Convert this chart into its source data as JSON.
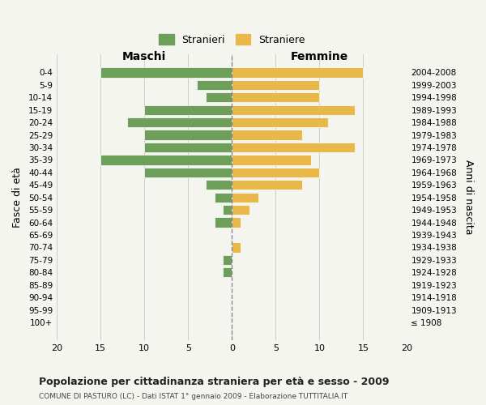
{
  "age_groups": [
    "100+",
    "95-99",
    "90-94",
    "85-89",
    "80-84",
    "75-79",
    "70-74",
    "65-69",
    "60-64",
    "55-59",
    "50-54",
    "45-49",
    "40-44",
    "35-39",
    "30-34",
    "25-29",
    "20-24",
    "15-19",
    "10-14",
    "5-9",
    "0-4"
  ],
  "birth_years": [
    "≤ 1908",
    "1909-1913",
    "1914-1918",
    "1919-1923",
    "1924-1928",
    "1929-1933",
    "1934-1938",
    "1939-1943",
    "1944-1948",
    "1949-1953",
    "1954-1958",
    "1959-1963",
    "1964-1968",
    "1969-1973",
    "1974-1978",
    "1979-1983",
    "1984-1988",
    "1989-1993",
    "1994-1998",
    "1999-2003",
    "2004-2008"
  ],
  "maschi": [
    0,
    0,
    0,
    0,
    1,
    1,
    0,
    0,
    2,
    1,
    2,
    3,
    10,
    15,
    10,
    10,
    12,
    10,
    3,
    4,
    15
  ],
  "femmine": [
    0,
    0,
    0,
    0,
    0,
    0,
    1,
    0,
    1,
    2,
    3,
    8,
    10,
    9,
    14,
    8,
    11,
    14,
    10,
    10,
    15
  ],
  "maschi_color": "#6d9e5a",
  "femmine_color": "#e8b84b",
  "background_color": "#f5f5f0",
  "grid_color": "#cccccc",
  "bar_height": 0.8,
  "xlim": 20,
  "title": "Popolazione per cittadinanza straniera per età e sesso - 2009",
  "subtitle": "COMUNE DI PASTURO (LC) - Dati ISTAT 1° gennaio 2009 - Elaborazione TUTTITALIA.IT",
  "ylabel_left": "Fasce di età",
  "ylabel_right": "Anni di nascita",
  "xlabel_left": "Maschi",
  "xlabel_right": "Femmine",
  "legend_stranieri": "Stranieri",
  "legend_straniere": "Straniere"
}
